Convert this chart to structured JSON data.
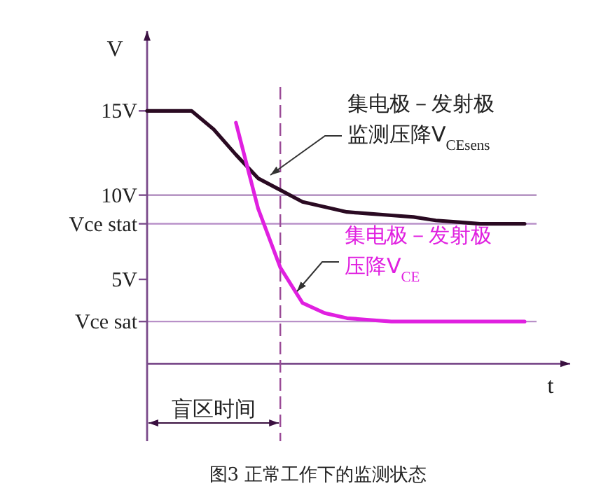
{
  "chart_data": {
    "type": "line",
    "ylabel": "V",
    "xlabel": "t",
    "ylim": [
      -4.6,
      19.75
    ],
    "categories": [
      null,
      null,
      null,
      null,
      null,
      null,
      null,
      null,
      null,
      null,
      null,
      null,
      null,
      null,
      null,
      null,
      null,
      null
    ],
    "yticks": [
      {
        "value": 15,
        "label": "15V"
      },
      {
        "value": 10,
        "label": "10V"
      },
      {
        "value": 8.3,
        "label": "Vce stat"
      },
      {
        "value": 5,
        "label": "5V"
      },
      {
        "value": 2.5,
        "label": "Vce sat"
      }
    ],
    "tick_labels": "y",
    "series": [
      {
        "name": "集电极－发射极监测压降V$_{CEsens}$",
        "color": "#2a0a22",
        "values": [
          15,
          15,
          15,
          13.9,
          12.4,
          11,
          10.3,
          9.6,
          9.3,
          9,
          8.9,
          8.8,
          8.7,
          8.5,
          8.4,
          8.3,
          8.3,
          8.3
        ]
      },
      {
        "name": "集电极－发射极压降V$_{CE}$",
        "color": "#e020e0",
        "values": [
          null,
          null,
          null,
          null,
          14.3,
          9.2,
          5.7,
          3.6,
          3,
          2.7,
          2.6,
          2.5,
          2.5,
          2.5,
          2.5,
          2.5,
          2.5,
          2.5
        ]
      }
    ],
    "ref_lines": [
      {
        "axis": "y",
        "value": 0,
        "color": "#7a4a8a"
      },
      {
        "axis": "y",
        "value": 10,
        "color": "#a880b8"
      },
      {
        "axis": "y",
        "value": 8.3,
        "color": "#b890c8"
      },
      {
        "axis": "y",
        "value": 2.5,
        "color": "#b890c8"
      }
    ],
    "annotations": [
      "盲区时间",
      "图3 正常工作下的监测状态"
    ]
  }
}
